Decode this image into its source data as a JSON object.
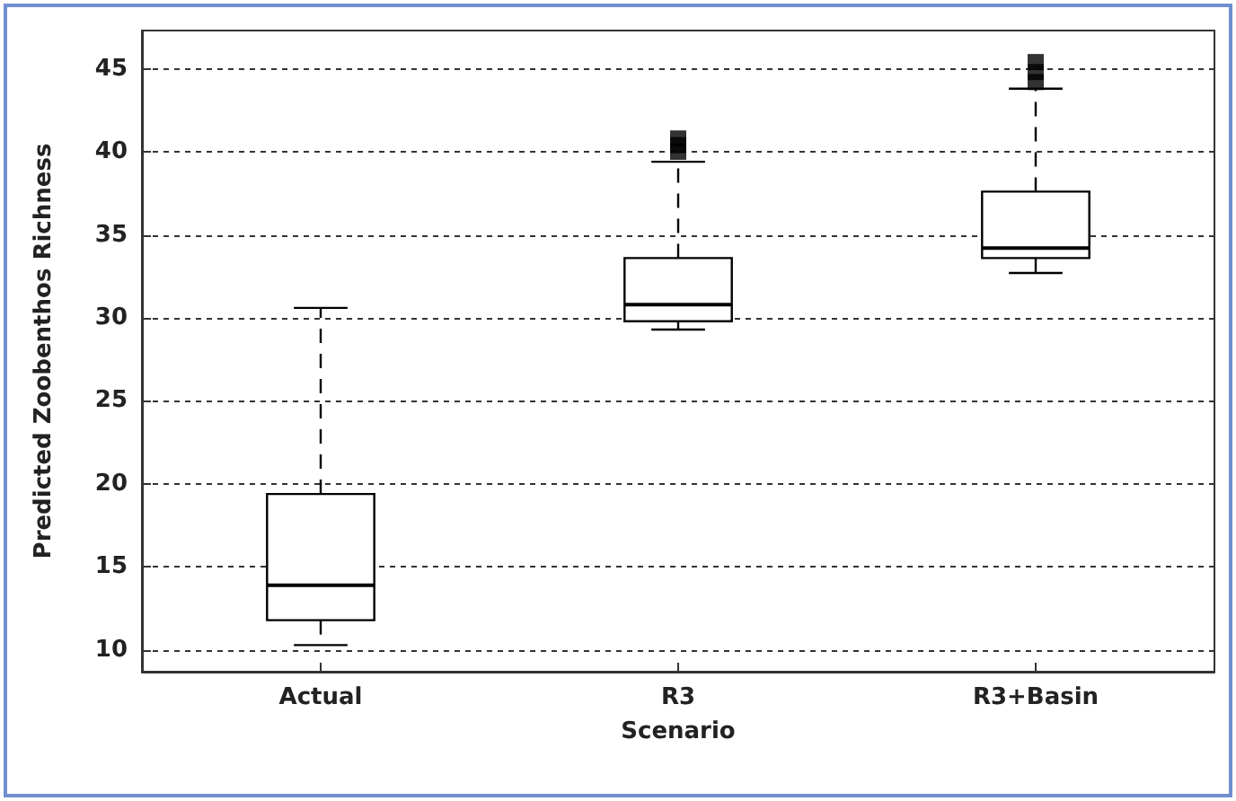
{
  "chart_data": {
    "type": "box",
    "xlabel": "Scenario",
    "ylabel": "Predicted Zoobenthos Richness",
    "categories": [
      "Actual",
      "R3",
      "R3+Basin"
    ],
    "boxes": [
      {
        "low": 10.3,
        "q1": 11.8,
        "median": 13.9,
        "q3": 19.4,
        "high": 30.6
      },
      {
        "low": 29.3,
        "q1": 29.8,
        "median": 30.8,
        "q3": 33.6,
        "high": 39.4,
        "outliers": [
          40.0,
          40.4,
          40.8
        ]
      },
      {
        "low": 32.7,
        "q1": 33.6,
        "median": 34.2,
        "q3": 37.6,
        "high": 43.8,
        "outliers": [
          44.2,
          44.8,
          45.4
        ]
      }
    ],
    "color": "#000000",
    "ylim": [
      8.7,
      47.3
    ],
    "yticks": [
      10,
      15,
      20,
      25,
      30,
      35,
      40,
      45
    ],
    "grid": "y",
    "marker": "square",
    "line_style": "dashed"
  }
}
